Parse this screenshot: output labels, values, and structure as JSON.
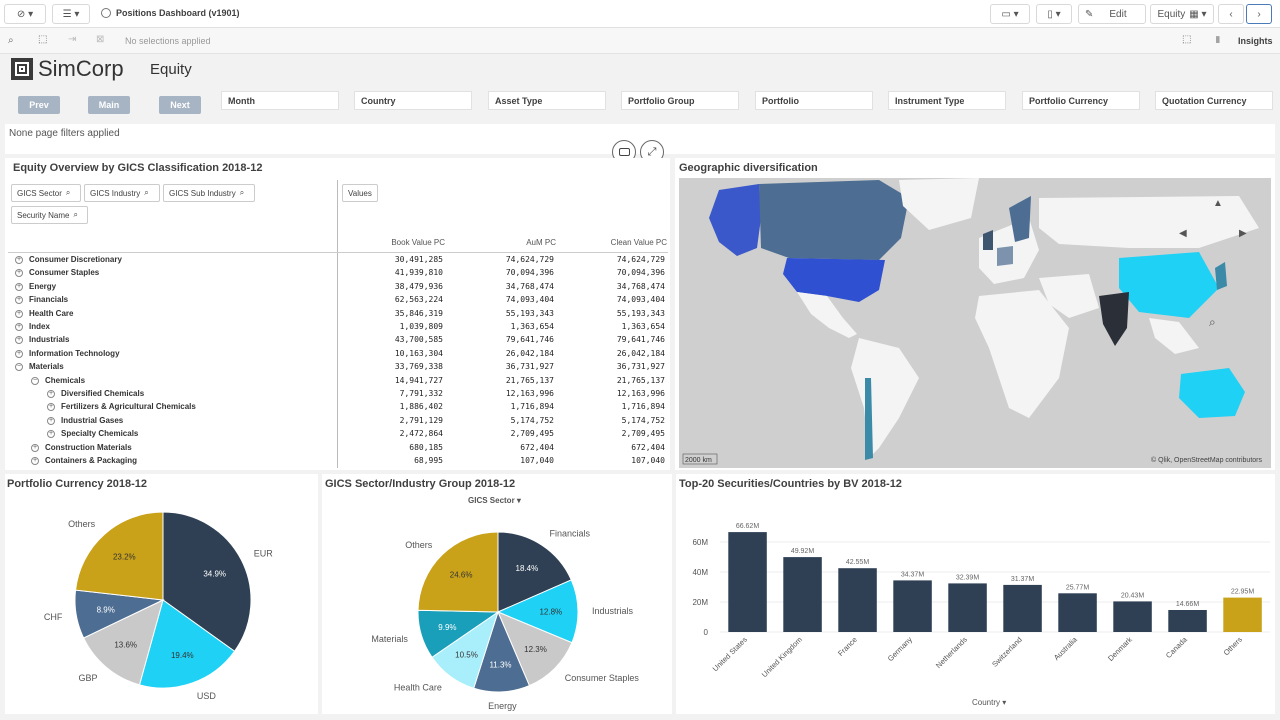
{
  "app": {
    "title": "Positions Dashboard (v1901)",
    "selections": "No selections applied",
    "insights": "Insights",
    "edit": "Edit",
    "sheet_menu": "Equity",
    "brand": "SimCorp",
    "sheet_title": "Equity"
  },
  "nav": {
    "prev": "Prev",
    "main": "Main",
    "next": "Next"
  },
  "filters": [
    "Month",
    "Country",
    "Asset Type",
    "Portfolio Group",
    "Portfolio",
    "Instrument Type",
    "Portfolio Currency",
    "Quotation Currency"
  ],
  "page_filters_text": "None page filters applied",
  "table": {
    "title": "Equity Overview by GICS Classification 2018-12",
    "dim_buttons": [
      "GICS Sector",
      "GICS Industry",
      "GICS Sub Industry",
      "Security Name"
    ],
    "values_label": "Values",
    "columns": [
      "Book Value PC",
      "AuM PC",
      "Clean Value PC"
    ],
    "rows": [
      {
        "label": "Consumer Discretionary",
        "level": 0,
        "sign": "+",
        "v": [
          "30,491,285",
          "74,624,729",
          "74,624,729"
        ]
      },
      {
        "label": "Consumer Staples",
        "level": 0,
        "sign": "+",
        "v": [
          "41,939,810",
          "70,094,396",
          "70,094,396"
        ]
      },
      {
        "label": "Energy",
        "level": 0,
        "sign": "+",
        "v": [
          "38,479,936",
          "34,768,474",
          "34,768,474"
        ]
      },
      {
        "label": "Financials",
        "level": 0,
        "sign": "+",
        "v": [
          "62,563,224",
          "74,093,404",
          "74,093,404"
        ]
      },
      {
        "label": "Health Care",
        "level": 0,
        "sign": "+",
        "v": [
          "35,846,319",
          "55,193,343",
          "55,193,343"
        ]
      },
      {
        "label": "Index",
        "level": 0,
        "sign": "+",
        "v": [
          "1,039,809",
          "1,363,654",
          "1,363,654"
        ]
      },
      {
        "label": "Industrials",
        "level": 0,
        "sign": "+",
        "v": [
          "43,700,585",
          "79,641,746",
          "79,641,746"
        ]
      },
      {
        "label": "Information Technology",
        "level": 0,
        "sign": "+",
        "v": [
          "10,163,304",
          "26,042,184",
          "26,042,184"
        ]
      },
      {
        "label": "Materials",
        "level": 0,
        "sign": "−",
        "v": [
          "33,769,338",
          "36,731,927",
          "36,731,927"
        ]
      },
      {
        "label": "Chemicals",
        "level": 1,
        "sign": "−",
        "v": [
          "14,941,727",
          "21,765,137",
          "21,765,137"
        ]
      },
      {
        "label": "Diversified Chemicals",
        "level": 2,
        "sign": "+",
        "v": [
          "7,791,332",
          "12,163,996",
          "12,163,996"
        ]
      },
      {
        "label": "Fertilizers & Agricultural Chemicals",
        "level": 2,
        "sign": "+",
        "v": [
          "1,886,402",
          "1,716,894",
          "1,716,894"
        ]
      },
      {
        "label": "Industrial Gases",
        "level": 2,
        "sign": "+",
        "v": [
          "2,791,129",
          "5,174,752",
          "5,174,752"
        ]
      },
      {
        "label": "Specialty Chemicals",
        "level": 2,
        "sign": "+",
        "v": [
          "2,472,864",
          "2,709,495",
          "2,709,495"
        ]
      },
      {
        "label": "Construction Materials",
        "level": 1,
        "sign": "+",
        "v": [
          "680,185",
          "672,404",
          "672,404"
        ]
      },
      {
        "label": "Containers & Packaging",
        "level": 1,
        "sign": "+",
        "v": [
          "68,995",
          "107,040",
          "107,040"
        ]
      }
    ]
  },
  "map": {
    "title": "Geographic diversification",
    "scale": "2000 km",
    "attribution": "© Qlik, OpenStreetMap contributors"
  },
  "charts": {
    "currency": {
      "title": "Portfolio Currency 2018-12",
      "colors": [
        "#2f4054",
        "#1fd1f5",
        "#c9c9c9",
        "#4d6d92",
        "#c9a21a"
      ]
    },
    "gics": {
      "title": "GICS Sector/Industry Group 2018-12",
      "dimension": "GICS Sector",
      "colors": [
        "#2f4054",
        "#1fd1f5",
        "#c9c9c9",
        "#4d6d92",
        "#a9eefb",
        "#1a9fba",
        "#c9a21a"
      ]
    },
    "top20": {
      "title": "Top-20 Securities/Countries by BV 2018-12",
      "xlabel": "Country",
      "colors": [
        "#2f4054",
        "#c9a21a"
      ]
    }
  },
  "chart_data": [
    {
      "type": "pie",
      "title": "Portfolio Currency 2018-12",
      "categories": [
        "EUR",
        "USD",
        "GBP",
        "CHF",
        "Others"
      ],
      "values": [
        34.9,
        19.4,
        13.6,
        8.9,
        23.2
      ],
      "labels": [
        "34.9%",
        "19.4%",
        "13.6%",
        "8.9%",
        "23.2%"
      ]
    },
    {
      "type": "pie",
      "title": "GICS Sector/Industry Group 2018-12",
      "categories": [
        "Financials",
        "Industrials",
        "Consumer Staples",
        "Energy",
        "Health Care",
        "Materials",
        "Others"
      ],
      "values": [
        18.4,
        12.8,
        12.3,
        11.3,
        10.5,
        9.9,
        24.6
      ],
      "labels": [
        "18.4%",
        "12.8%",
        "12.3%",
        "11.3%",
        "10.5%",
        "9.9%",
        "24.6%"
      ]
    },
    {
      "type": "bar",
      "title": "Top-20 Securities/Countries by BV 2018-12",
      "xlabel": "Country",
      "categories": [
        "United States",
        "United Kingdom",
        "France",
        "Germany",
        "Netherlands",
        "Switzerland",
        "Australia",
        "Denmark",
        "Canada",
        "Others"
      ],
      "values": [
        66.62,
        49.92,
        42.55,
        34.37,
        32.39,
        31.37,
        25.77,
        20.43,
        14.66,
        22.95
      ],
      "labels": [
        "66.62M",
        "49.92M",
        "42.55M",
        "34.37M",
        "32.39M",
        "31.37M",
        "25.77M",
        "20.43M",
        "14.66M",
        "22.95M"
      ],
      "yticks": [
        "0",
        "20M",
        "40M",
        "60M"
      ],
      "ylim": [
        0,
        80
      ]
    }
  ]
}
